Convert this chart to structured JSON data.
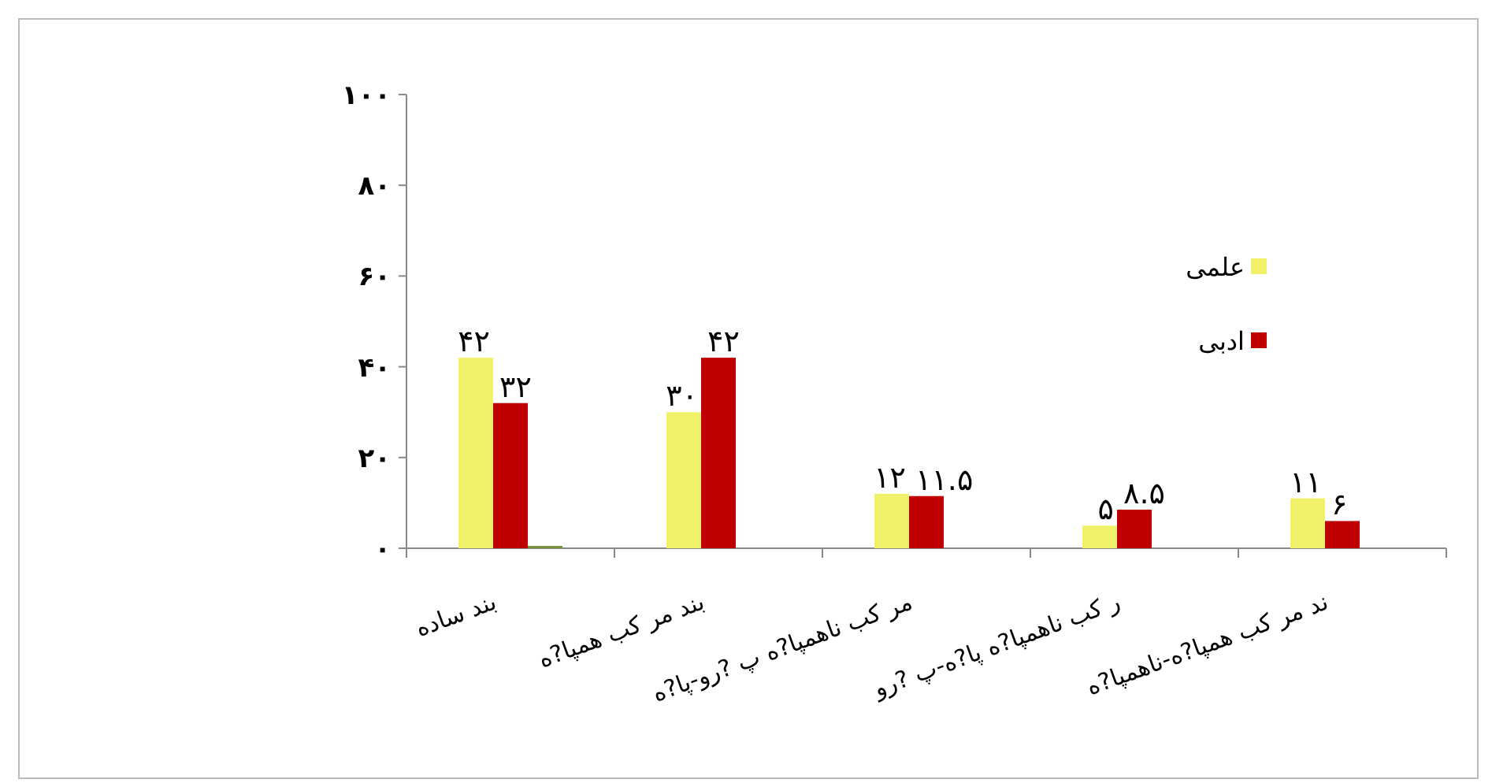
{
  "chart_data": {
    "type": "bar",
    "categories": [
      "بند ساده",
      "بند مر کب همپا?ه",
      "مر کب ناهمپا?ه پ ?رو-پا?ه",
      "ر کب ناهمپا?ه پا?ه-پ ?رو",
      "ند مر کب همپا?ه-ناهمپا?ه"
    ],
    "series": [
      {
        "name": "علمی",
        "color": "#f0f06a",
        "values": [
          42,
          30,
          12,
          5,
          11
        ],
        "value_labels": [
          "۴۲",
          "۳۰",
          "۱۲",
          "۵",
          "۱۱"
        ]
      },
      {
        "name": "ادبی",
        "color": "#c00000",
        "values": [
          32,
          42,
          11.5,
          8.5,
          6
        ],
        "value_labels": [
          "۳۲",
          "۴۲",
          "۱۱.۵",
          "۸.۵",
          "۶"
        ]
      },
      {
        "color": "#77933c",
        "values": [
          0,
          null,
          null,
          null,
          null
        ]
      }
    ],
    "ylim": [
      0,
      100
    ],
    "yticks": [
      {
        "value": 0,
        "label": "۰"
      },
      {
        "value": 20,
        "label": "۲۰"
      },
      {
        "value": 40,
        "label": "۴۰"
      },
      {
        "value": 60,
        "label": "۶۰"
      },
      {
        "value": 80,
        "label": "۸۰"
      },
      {
        "value": 100,
        "label": "۱۰۰"
      }
    ],
    "grid": false,
    "legend": "right"
  }
}
